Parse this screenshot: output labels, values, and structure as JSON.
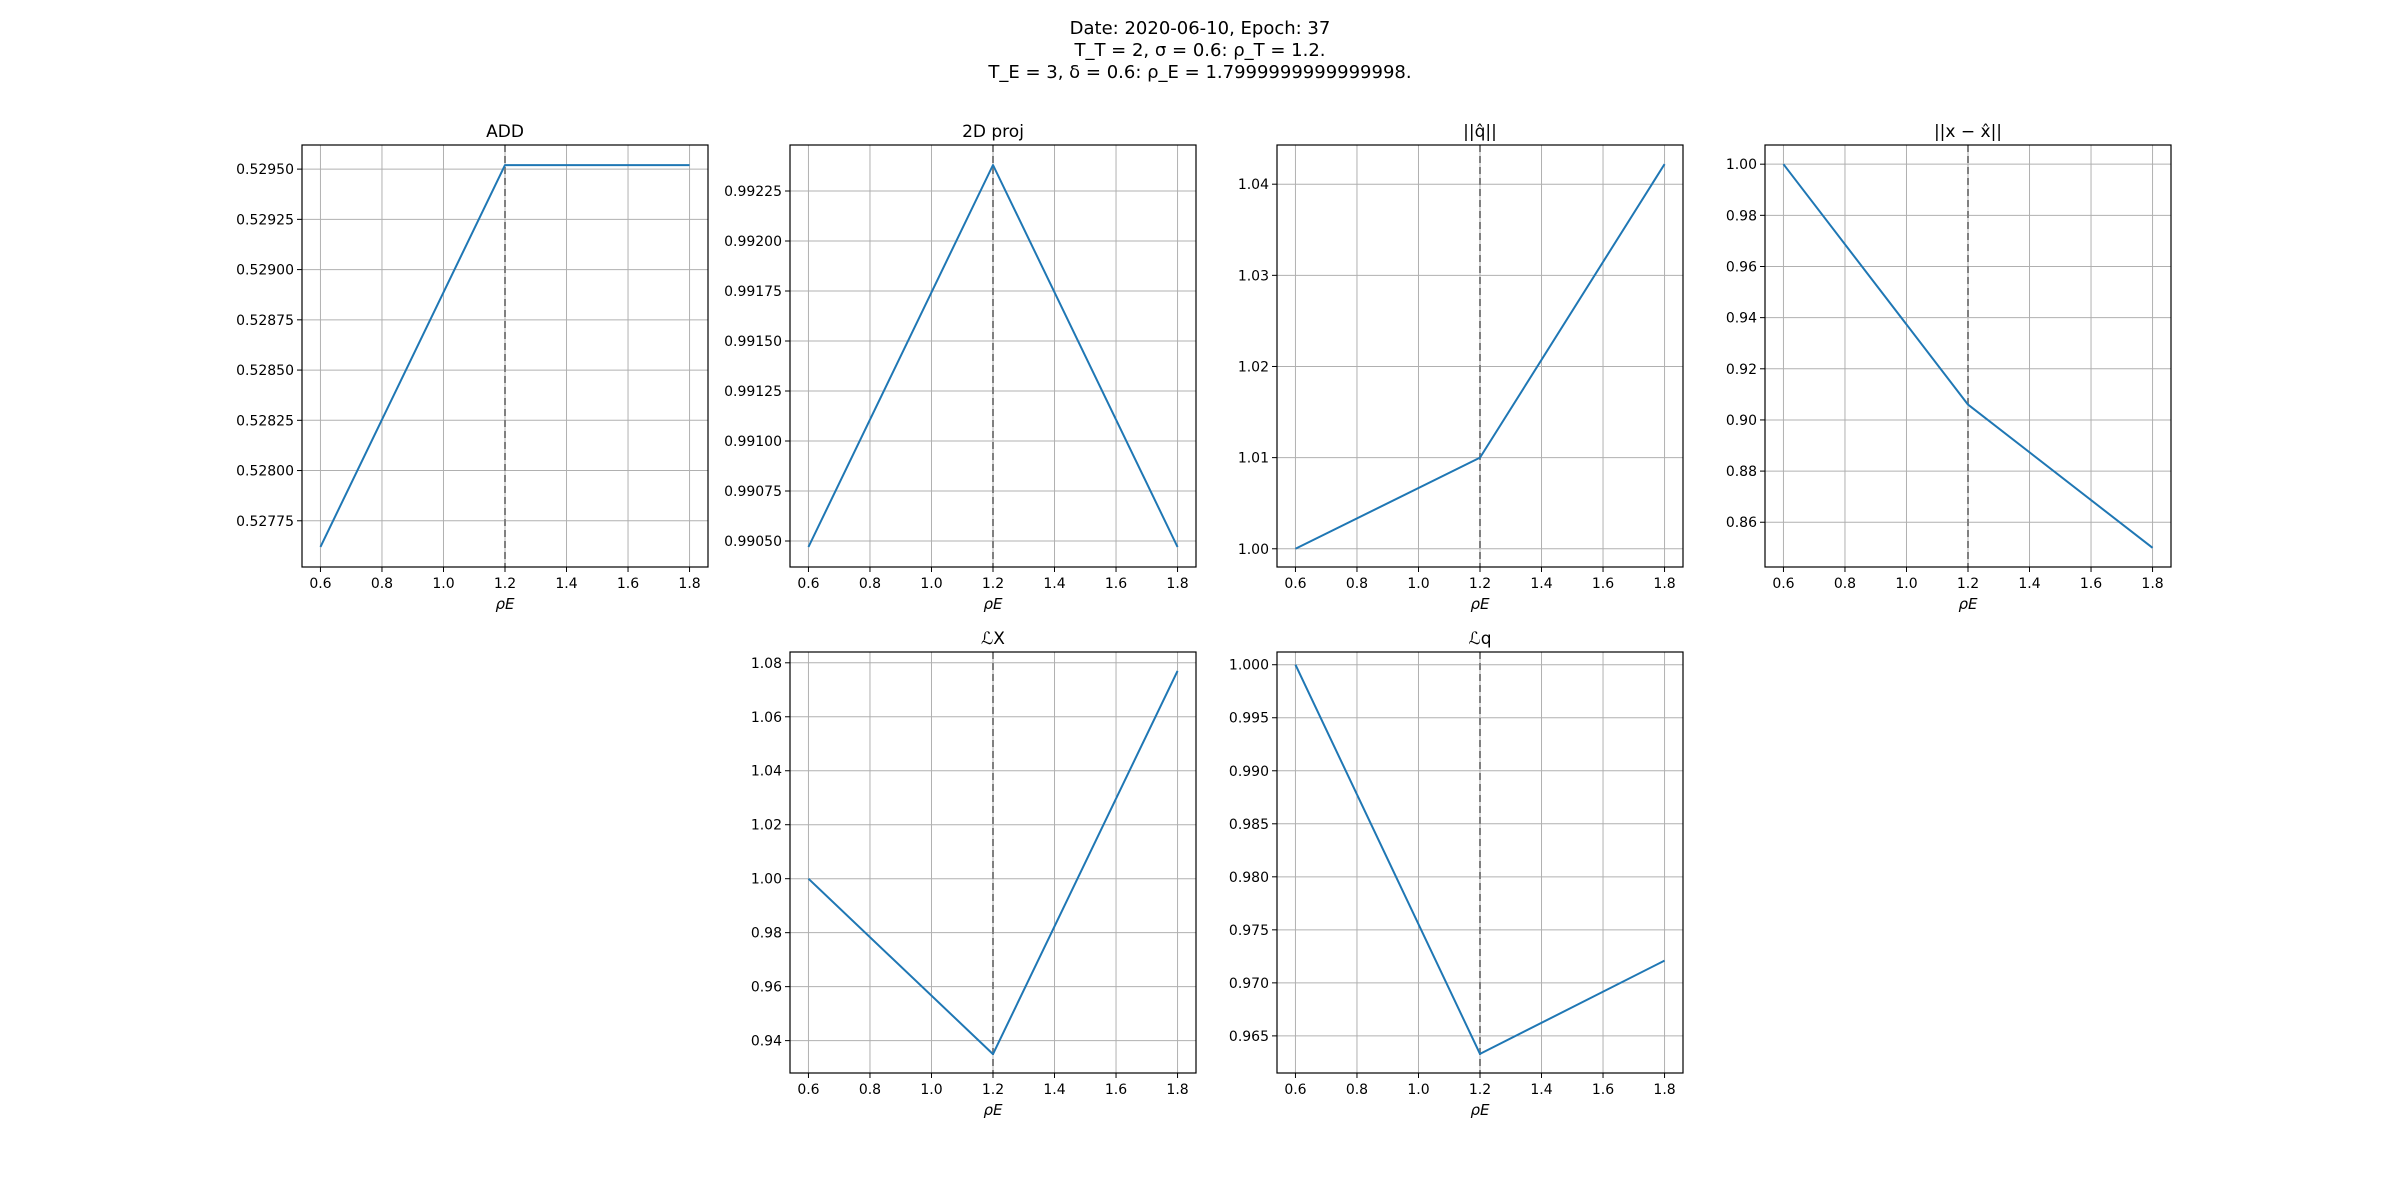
{
  "figure_title": {
    "line1": "Date: 2020-06-10, Epoch: 37",
    "line2": "T_T = 2, σ = 0.6: ρ_T = 1.2.",
    "line3": "T_E = 3, δ = 0.6: ρ_E = 1.7999999999999998."
  },
  "colors": {
    "line": "#1f77b4",
    "vline": "#808080",
    "grid": "#b0b0b0",
    "axes": "#000000"
  },
  "chart_data": [
    {
      "type": "line",
      "title": "ADD",
      "xlabel": "ρE",
      "x": [
        0.6,
        1.2,
        1.8
      ],
      "series": [
        {
          "values": [
            0.52762,
            0.52952,
            0.52952
          ]
        }
      ],
      "xlim": [
        0.54,
        1.86
      ],
      "ylim": [
        0.52752,
        0.52962
      ],
      "xticks": [
        0.6,
        0.8,
        1.0,
        1.2,
        1.4,
        1.6,
        1.8
      ],
      "xtick_labels": [
        "0.6",
        "0.8",
        "1.0",
        "1.2",
        "1.4",
        "1.6",
        "1.8"
      ],
      "yticks": [
        0.52775,
        0.528,
        0.52825,
        0.5285,
        0.52875,
        0.529,
        0.52925,
        0.5295
      ],
      "ytick_labels": [
        "0.52775",
        "0.52800",
        "0.52825",
        "0.52850",
        "0.52875",
        "0.52900",
        "0.52925",
        "0.52950"
      ],
      "vline_x": 1.2,
      "grid": true
    },
    {
      "type": "line",
      "title": "2D proj",
      "xlabel": "ρE",
      "x": [
        0.6,
        1.2,
        1.8
      ],
      "series": [
        {
          "values": [
            0.99047,
            0.99238,
            0.99047
          ]
        }
      ],
      "xlim": [
        0.54,
        1.86
      ],
      "ylim": [
        0.99037,
        0.99248
      ],
      "xticks": [
        0.6,
        0.8,
        1.0,
        1.2,
        1.4,
        1.6,
        1.8
      ],
      "xtick_labels": [
        "0.6",
        "0.8",
        "1.0",
        "1.2",
        "1.4",
        "1.6",
        "1.8"
      ],
      "yticks": [
        0.9905,
        0.99075,
        0.991,
        0.99125,
        0.9915,
        0.99175,
        0.992,
        0.99225
      ],
      "ytick_labels": [
        "0.99050",
        "0.99075",
        "0.99100",
        "0.99125",
        "0.99150",
        "0.99175",
        "0.99200",
        "0.99225"
      ],
      "vline_x": 1.2,
      "grid": true
    },
    {
      "type": "line",
      "title": "||q̂||",
      "xlabel": "ρE",
      "x": [
        0.6,
        1.2,
        1.8
      ],
      "series": [
        {
          "values": [
            1.0,
            1.01,
            1.0422
          ]
        }
      ],
      "xlim": [
        0.54,
        1.86
      ],
      "ylim": [
        0.998,
        1.0443
      ],
      "xticks": [
        0.6,
        0.8,
        1.0,
        1.2,
        1.4,
        1.6,
        1.8
      ],
      "xtick_labels": [
        "0.6",
        "0.8",
        "1.0",
        "1.2",
        "1.4",
        "1.6",
        "1.8"
      ],
      "yticks": [
        1.0,
        1.01,
        1.02,
        1.03,
        1.04
      ],
      "ytick_labels": [
        "1.00",
        "1.01",
        "1.02",
        "1.03",
        "1.04"
      ],
      "vline_x": 1.2,
      "grid": true
    },
    {
      "type": "line",
      "title": "||x − x̂||",
      "xlabel": "ρE",
      "x": [
        0.6,
        1.2,
        1.8
      ],
      "series": [
        {
          "values": [
            1.0,
            0.906,
            0.85
          ]
        }
      ],
      "xlim": [
        0.54,
        1.86
      ],
      "ylim": [
        0.8425,
        1.0075
      ],
      "xticks": [
        0.6,
        0.8,
        1.0,
        1.2,
        1.4,
        1.6,
        1.8
      ],
      "xtick_labels": [
        "0.6",
        "0.8",
        "1.0",
        "1.2",
        "1.4",
        "1.6",
        "1.8"
      ],
      "yticks": [
        0.86,
        0.88,
        0.9,
        0.92,
        0.94,
        0.96,
        0.98,
        1.0
      ],
      "ytick_labels": [
        "0.86",
        "0.88",
        "0.90",
        "0.92",
        "0.94",
        "0.96",
        "0.98",
        "1.00"
      ],
      "vline_x": 1.2,
      "grid": true
    },
    {
      "type": "line",
      "title": "ℒX",
      "xlabel": "ρE",
      "x": [
        0.6,
        1.2,
        1.8
      ],
      "series": [
        {
          "values": [
            1.0,
            0.935,
            1.077
          ]
        }
      ],
      "xlim": [
        0.54,
        1.86
      ],
      "ylim": [
        0.928,
        1.084
      ],
      "xticks": [
        0.6,
        0.8,
        1.0,
        1.2,
        1.4,
        1.6,
        1.8
      ],
      "xtick_labels": [
        "0.6",
        "0.8",
        "1.0",
        "1.2",
        "1.4",
        "1.6",
        "1.8"
      ],
      "yticks": [
        0.94,
        0.96,
        0.98,
        1.0,
        1.02,
        1.04,
        1.06,
        1.08
      ],
      "ytick_labels": [
        "0.94",
        "0.96",
        "0.98",
        "1.00",
        "1.02",
        "1.04",
        "1.06",
        "1.08"
      ],
      "vline_x": 1.2,
      "grid": true
    },
    {
      "type": "line",
      "title": "ℒq",
      "xlabel": "ρE",
      "x": [
        0.6,
        1.2,
        1.8
      ],
      "series": [
        {
          "values": [
            1.0,
            0.9633,
            0.9721
          ]
        }
      ],
      "xlim": [
        0.54,
        1.86
      ],
      "ylim": [
        0.9615,
        1.0012
      ],
      "xticks": [
        0.6,
        0.8,
        1.0,
        1.2,
        1.4,
        1.6,
        1.8
      ],
      "xtick_labels": [
        "0.6",
        "0.8",
        "1.0",
        "1.2",
        "1.4",
        "1.6",
        "1.8"
      ],
      "yticks": [
        0.965,
        0.97,
        0.975,
        0.98,
        0.985,
        0.99,
        0.995,
        1.0
      ],
      "ytick_labels": [
        "0.965",
        "0.970",
        "0.975",
        "0.980",
        "0.985",
        "0.990",
        "0.995",
        "1.000"
      ],
      "vline_x": 1.2,
      "grid": true
    }
  ]
}
